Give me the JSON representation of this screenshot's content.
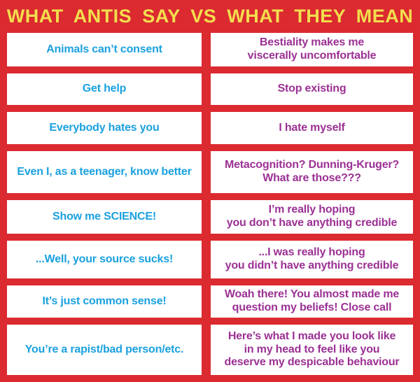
{
  "title": "WHAT ANTIS SAY VS WHAT THEY MEAN",
  "colors": {
    "background": "#DB2A30",
    "title_text": "#F2DE4E",
    "say_text": "#1BA1DF",
    "mean_text": "#9B3194",
    "cell": "#FFFFFF"
  },
  "chart_data": {
    "type": "table",
    "title": "WHAT ANTIS SAY VS WHAT THEY MEAN",
    "legend_position": "none",
    "grid": "red gutters between white cells, two columns, eight rows",
    "rows": [
      {
        "say": "Animals can’t consent",
        "mean": "Bestiality makes me\nviscerally uncomfortable"
      },
      {
        "say": "Get help",
        "mean": "Stop existing"
      },
      {
        "say": "Everybody hates you",
        "mean": "I hate myself"
      },
      {
        "say": "Even I, as a teenager, know better",
        "mean": "Metacognition? Dunning-Kruger?\nWhat are those???"
      },
      {
        "say": "Show me SCIENCE!",
        "mean": "I’m really hoping\nyou don’t have anything credible"
      },
      {
        "say": "...Well, your source sucks!",
        "mean": "...I was really hoping\nyou didn’t have anything credible"
      },
      {
        "say": "It’s just common sense!",
        "mean": "Woah there! You almost made me\nquestion my beliefs! Close call"
      },
      {
        "say": "You’re a rapist/bad person/etc.",
        "mean": "Here’s what I made you look like\nin my head to feel like you\ndeserve my despicable behaviour"
      }
    ]
  }
}
